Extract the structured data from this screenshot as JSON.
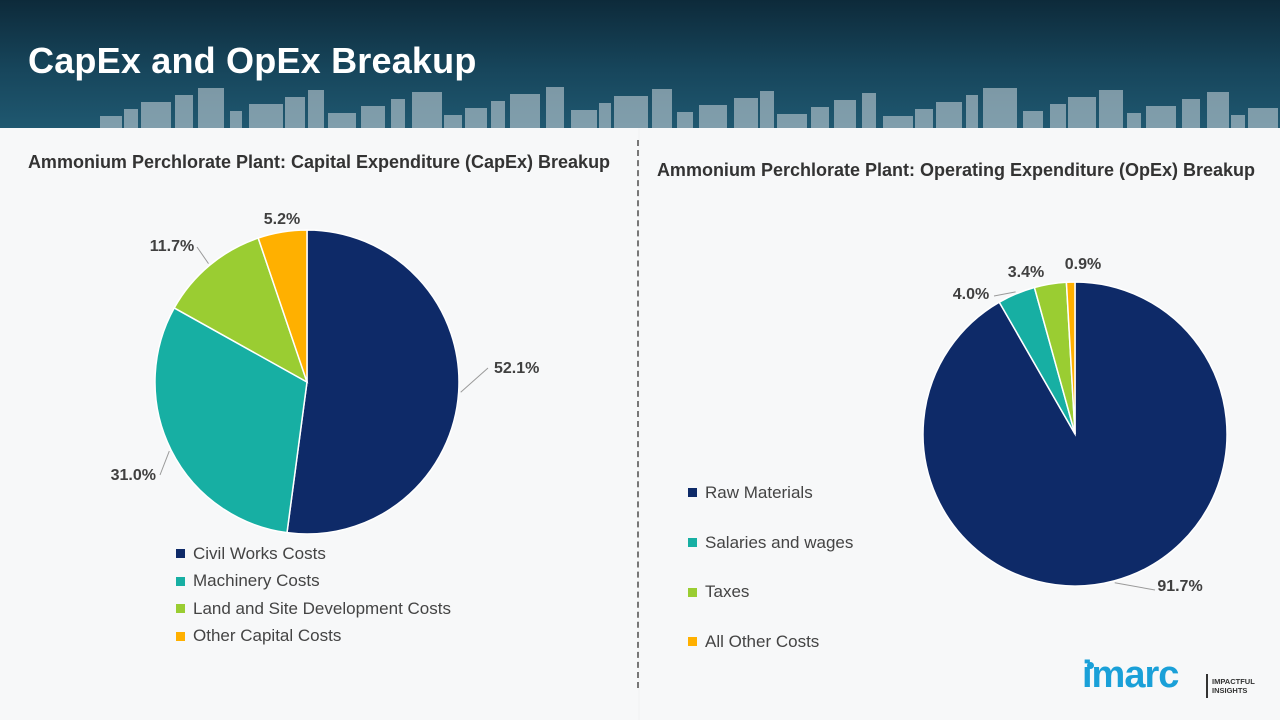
{
  "header": {
    "title": "CapEx and OpEx Breakup"
  },
  "chart_data": [
    {
      "type": "pie",
      "title": "Ammonium Perchlorate Plant: Capital Expenditure (CapEx) Breakup",
      "categories": [
        "Civil Works Costs",
        "Machinery Costs",
        "Land and Site Development Costs",
        "Other Capital Costs"
      ],
      "values": [
        52.1,
        31.0,
        11.7,
        5.2
      ],
      "data_labels": [
        "52.1%",
        "31.0%",
        "11.7%",
        "5.2%"
      ],
      "colors": [
        "#0e2a68",
        "#17afa3",
        "#9acd32",
        "#ffb000"
      ],
      "legend_position": "bottom"
    },
    {
      "type": "pie",
      "title": "Ammonium Perchlorate Plant: Operating Expenditure (OpEx) Breakup",
      "categories": [
        "Raw Materials",
        "Salaries and wages",
        "Taxes",
        "All Other Costs"
      ],
      "values": [
        91.7,
        4.0,
        3.4,
        0.9
      ],
      "data_labels": [
        "91.7%",
        "4.0%",
        "3.4%",
        "0.9%"
      ],
      "colors": [
        "#0e2a68",
        "#17afa3",
        "#9acd32",
        "#ffb000"
      ],
      "legend_position": "left"
    }
  ],
  "logo": {
    "name": "imarc",
    "tagline_1": "IMPACTFUL",
    "tagline_2": "INSIGHTS"
  }
}
